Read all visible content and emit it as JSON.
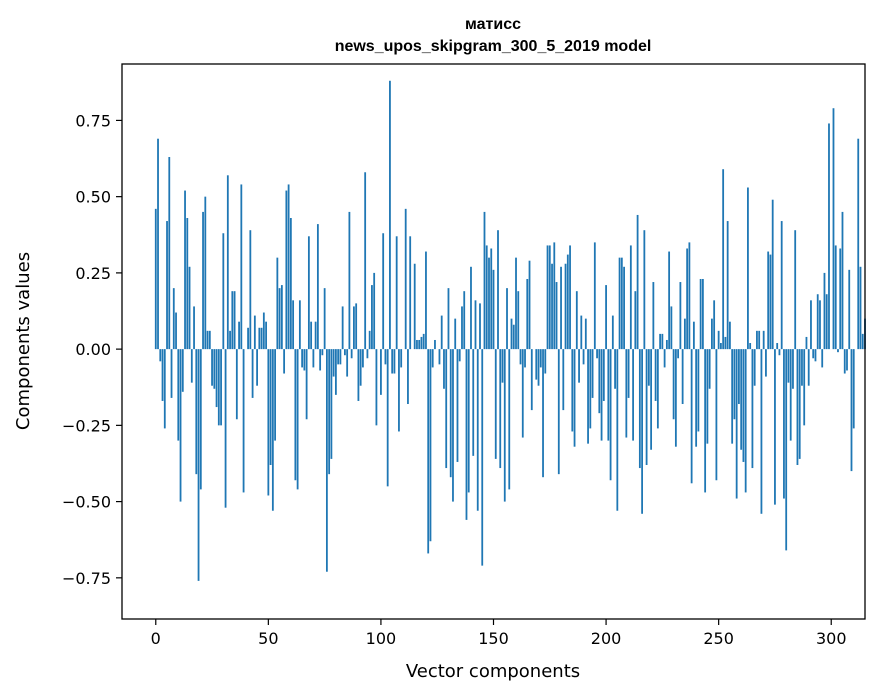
{
  "chart_data": {
    "type": "bar",
    "title": "матисс",
    "subtitle": "news_upos_skipgram_300_5_2019 model",
    "xlabel": "Vector components",
    "ylabel": "Components values",
    "xlim": [
      -15,
      315
    ],
    "ylim": [
      -0.885,
      0.935
    ],
    "xticks": [
      0,
      50,
      100,
      150,
      200,
      250,
      300
    ],
    "yticks": [
      -0.75,
      -0.5,
      -0.25,
      0.0,
      0.25,
      0.5,
      0.75
    ],
    "xtick_labels": [
      "0",
      "50",
      "100",
      "150",
      "200",
      "250",
      "300"
    ],
    "ytick_labels": [
      "−0.75",
      "−0.50",
      "−0.25",
      "0.00",
      "0.25",
      "0.50",
      "0.75"
    ],
    "bar_color": "#1f77b4",
    "grid": false,
    "values": [
      0.46,
      0.69,
      -0.04,
      -0.17,
      -0.26,
      0.42,
      0.63,
      -0.16,
      0.2,
      0.12,
      -0.3,
      -0.5,
      -0.14,
      0.52,
      0.43,
      0.27,
      -0.11,
      0.14,
      -0.41,
      -0.76,
      -0.46,
      0.45,
      0.5,
      0.06,
      0.06,
      -0.12,
      -0.13,
      -0.19,
      -0.25,
      -0.25,
      0.38,
      -0.52,
      0.57,
      0.06,
      0.19,
      0.19,
      -0.23,
      0.09,
      0.54,
      -0.47,
      0.0,
      0.07,
      0.39,
      -0.16,
      0.11,
      -0.12,
      0.07,
      0.07,
      0.12,
      0.09,
      -0.48,
      -0.38,
      -0.53,
      -0.3,
      0.3,
      0.2,
      0.21,
      -0.08,
      0.52,
      0.54,
      0.43,
      0.16,
      -0.43,
      -0.46,
      0.16,
      -0.06,
      -0.07,
      -0.23,
      0.37,
      0.09,
      -0.06,
      0.09,
      0.41,
      -0.07,
      -0.02,
      0.2,
      -0.73,
      -0.41,
      -0.36,
      -0.09,
      -0.15,
      -0.05,
      -0.05,
      0.14,
      -0.02,
      -0.09,
      0.45,
      -0.03,
      0.14,
      0.15,
      -0.17,
      -0.12,
      -0.06,
      0.58,
      -0.03,
      0.06,
      0.21,
      0.25,
      -0.25,
      0.0,
      -0.15,
      0.38,
      -0.05,
      -0.45,
      0.88,
      -0.08,
      -0.08,
      0.37,
      -0.27,
      -0.06,
      0.0,
      0.46,
      -0.18,
      0.37,
      0.0,
      0.28,
      0.03,
      0.03,
      0.04,
      0.05,
      0.32,
      -0.67,
      -0.63,
      -0.06,
      0.03,
      0.0,
      -0.05,
      0.11,
      -0.13,
      -0.39,
      0.2,
      -0.42,
      -0.5,
      0.1,
      -0.37,
      -0.04,
      0.14,
      0.19,
      -0.56,
      -0.47,
      0.27,
      -0.35,
      0.16,
      -0.53,
      0.15,
      -0.71,
      0.45,
      0.34,
      0.3,
      0.33,
      0.26,
      -0.36,
      0.39,
      -0.39,
      -0.11,
      -0.5,
      0.2,
      -0.46,
      0.1,
      0.08,
      0.3,
      0.19,
      -0.05,
      -0.29,
      -0.06,
      0.23,
      0.29,
      -0.2,
      0.0,
      -0.1,
      -0.12,
      -0.06,
      -0.42,
      -0.08,
      0.34,
      0.34,
      0.28,
      0.35,
      0.22,
      -0.41,
      0.27,
      -0.2,
      0.28,
      0.31,
      0.34,
      -0.27,
      -0.32,
      0.19,
      -0.11,
      0.11,
      -0.05,
      0.1,
      -0.31,
      -0.26,
      -0.16,
      0.35,
      -0.03,
      -0.21,
      -0.3,
      -0.17,
      0.21,
      -0.3,
      -0.43,
      0.11,
      -0.13,
      -0.53,
      0.3,
      0.3,
      0.27,
      -0.29,
      -0.16,
      0.34,
      -0.3,
      0.19,
      0.44,
      -0.39,
      -0.54,
      0.39,
      -0.38,
      -0.12,
      -0.33,
      0.22,
      -0.17,
      -0.26,
      0.05,
      0.05,
      -0.06,
      0.03,
      0.32,
      0.14,
      -0.23,
      -0.32,
      -0.03,
      0.22,
      -0.18,
      0.1,
      0.33,
      0.35,
      -0.44,
      0.09,
      -0.32,
      -0.27,
      0.23,
      0.23,
      -0.47,
      -0.31,
      -0.13,
      0.1,
      0.16,
      -0.43,
      0.06,
      0.02,
      0.59,
      0.04,
      0.42,
      0.09,
      -0.31,
      -0.23,
      -0.49,
      -0.18,
      -0.33,
      -0.37,
      -0.47,
      0.53,
      0.02,
      -0.39,
      -0.12,
      0.06,
      0.06,
      -0.54,
      0.06,
      -0.09,
      0.32,
      0.31,
      0.49,
      -0.51,
      0.02,
      -0.02,
      0.42,
      -0.49,
      -0.66,
      -0.11,
      -0.3,
      -0.13,
      0.39,
      -0.38,
      -0.36,
      -0.12,
      -0.25,
      0.04,
      -0.12,
      0.16,
      -0.03,
      -0.04,
      0.18,
      0.16,
      -0.06,
      0.25,
      0.18,
      0.74,
      0.0,
      0.79,
      0.34,
      -0.01,
      0.33,
      0.45,
      -0.08,
      -0.07,
      0.26,
      -0.4,
      -0.26,
      0.0,
      0.69,
      0.27,
      0.05,
      0.1,
      0.0
    ]
  }
}
